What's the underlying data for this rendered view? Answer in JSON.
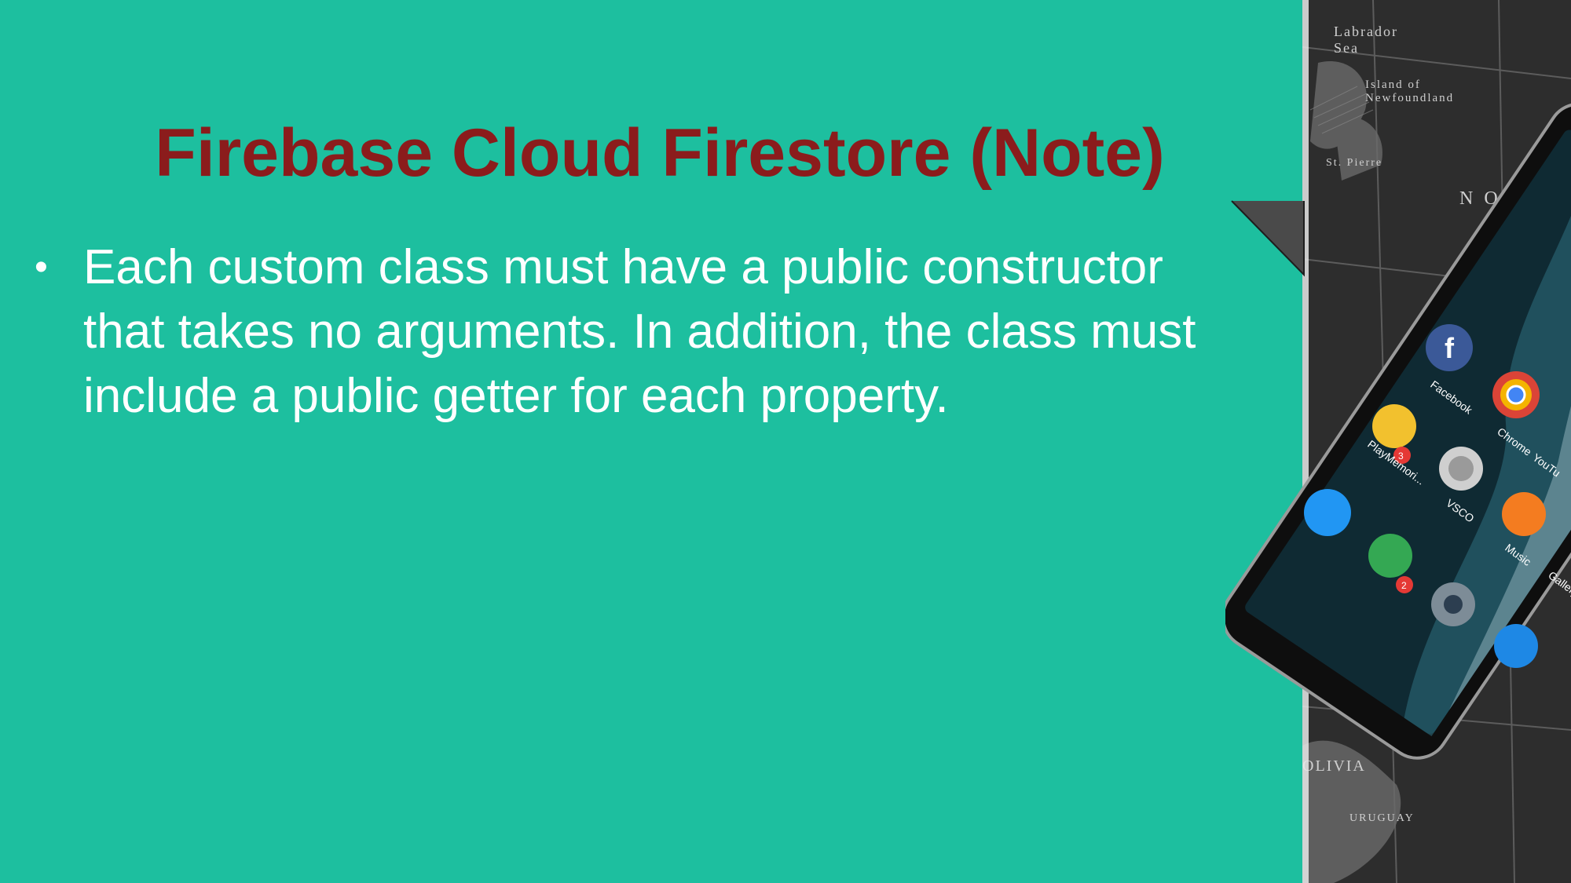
{
  "slide": {
    "title": "Firebase Cloud Firestore (Note)",
    "bullets": [
      "Each custom class must have a public constructor that takes no arguments. In addition, the class must include a public getter for each property."
    ],
    "bullet_glyph": "•"
  },
  "decoration": {
    "map_labels": [
      "Labrador Sea",
      "Island of Newfoundland",
      "St. Pierre",
      "NO",
      "OLIVIA",
      "URUGUAY"
    ],
    "app_labels": [
      "Facebook",
      "Chrome",
      "PlayMemori...",
      "VSCO",
      "YouTu",
      "Music",
      "Gallery"
    ],
    "badges": [
      "3",
      "2"
    ],
    "colors": {
      "background": "#1dbf9f",
      "title": "#8b1c1c",
      "text": "#ffffff",
      "map": "#2b2b2b",
      "phone_body": "#0e0e0e"
    }
  }
}
